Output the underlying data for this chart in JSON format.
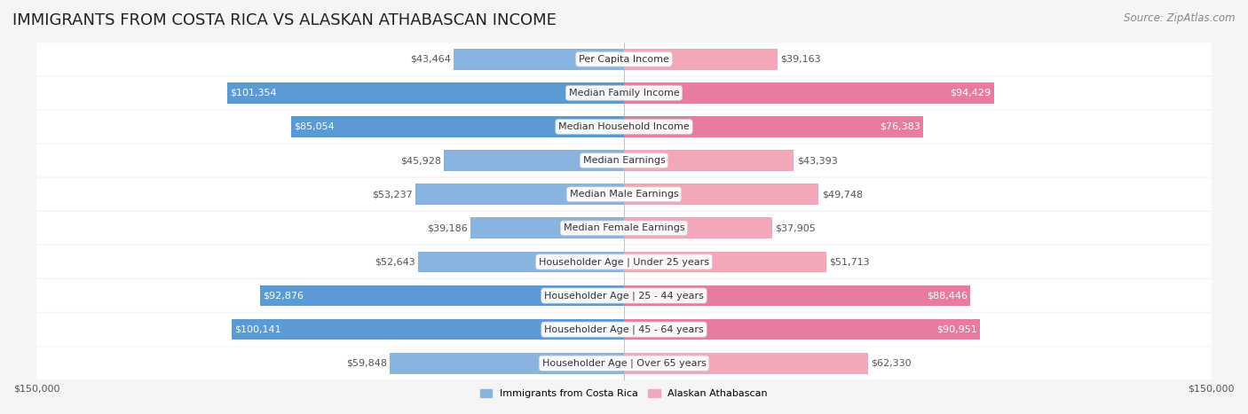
{
  "title": "IMMIGRANTS FROM COSTA RICA VS ALASKAN ATHABASCAN INCOME",
  "source": "Source: ZipAtlas.com",
  "categories": [
    "Per Capita Income",
    "Median Family Income",
    "Median Household Income",
    "Median Earnings",
    "Median Male Earnings",
    "Median Female Earnings",
    "Householder Age | Under 25 years",
    "Householder Age | 25 - 44 years",
    "Householder Age | 45 - 64 years",
    "Householder Age | Over 65 years"
  ],
  "left_values": [
    43464,
    101354,
    85054,
    45928,
    53237,
    39186,
    52643,
    92876,
    100141,
    59848
  ],
  "right_values": [
    39163,
    94429,
    76383,
    43393,
    49748,
    37905,
    51713,
    88446,
    90951,
    62330
  ],
  "left_labels": [
    "$43,464",
    "$101,354",
    "$85,054",
    "$45,928",
    "$53,237",
    "$39,186",
    "$52,643",
    "$92,876",
    "$100,141",
    "$59,848"
  ],
  "right_labels": [
    "$39,163",
    "$94,429",
    "$76,383",
    "$43,393",
    "$49,748",
    "$37,905",
    "$51,713",
    "$88,446",
    "$90,951",
    "$62,330"
  ],
  "left_color": "#89b4e0",
  "left_color_dark": "#5b9bd5",
  "right_color": "#f4a7b9",
  "right_color_dark": "#e87ca0",
  "max_value": 150000,
  "legend_left": "Immigrants from Costa Rica",
  "legend_right": "Alaskan Athabascan",
  "bg_color": "#f5f5f5",
  "row_bg": "#ffffff",
  "label_inside_threshold": 70000,
  "title_fontsize": 13,
  "source_fontsize": 8.5,
  "bar_label_fontsize": 8,
  "category_fontsize": 8,
  "axis_label_fontsize": 8
}
